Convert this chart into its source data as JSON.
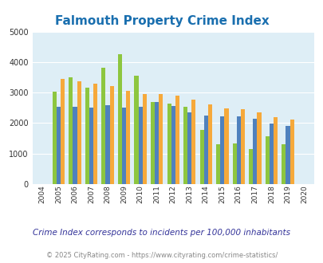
{
  "title": "Falmouth Property Crime Index",
  "years": [
    2004,
    2005,
    2006,
    2007,
    2008,
    2009,
    2010,
    2011,
    2012,
    2013,
    2014,
    2015,
    2016,
    2017,
    2018,
    2019,
    2020
  ],
  "falmouth": [
    0,
    3020,
    3500,
    3170,
    3810,
    4270,
    3550,
    2680,
    2640,
    2530,
    1770,
    1310,
    1330,
    1160,
    1570,
    1300,
    0
  ],
  "kentucky": [
    0,
    2540,
    2540,
    2500,
    2590,
    2510,
    2540,
    2690,
    2560,
    2340,
    2250,
    2210,
    2220,
    2140,
    1990,
    1910,
    0
  ],
  "national": [
    0,
    3450,
    3370,
    3280,
    3210,
    3050,
    2960,
    2940,
    2890,
    2760,
    2600,
    2490,
    2460,
    2360,
    2200,
    2110,
    0
  ],
  "falmouth_color": "#8dc63f",
  "kentucky_color": "#4f81bd",
  "national_color": "#f6a93b",
  "bg_color": "#deeef6",
  "ylim": [
    0,
    5000
  ],
  "yticks": [
    0,
    1000,
    2000,
    3000,
    4000,
    5000
  ],
  "note": "Crime Index corresponds to incidents per 100,000 inhabitants",
  "footer": "© 2025 CityRating.com - https://www.cityrating.com/crime-statistics/",
  "bar_width": 0.25,
  "title_color": "#1a6faf",
  "note_color": "#333399",
  "footer_color": "#888888",
  "grid_color": "#ffffff"
}
